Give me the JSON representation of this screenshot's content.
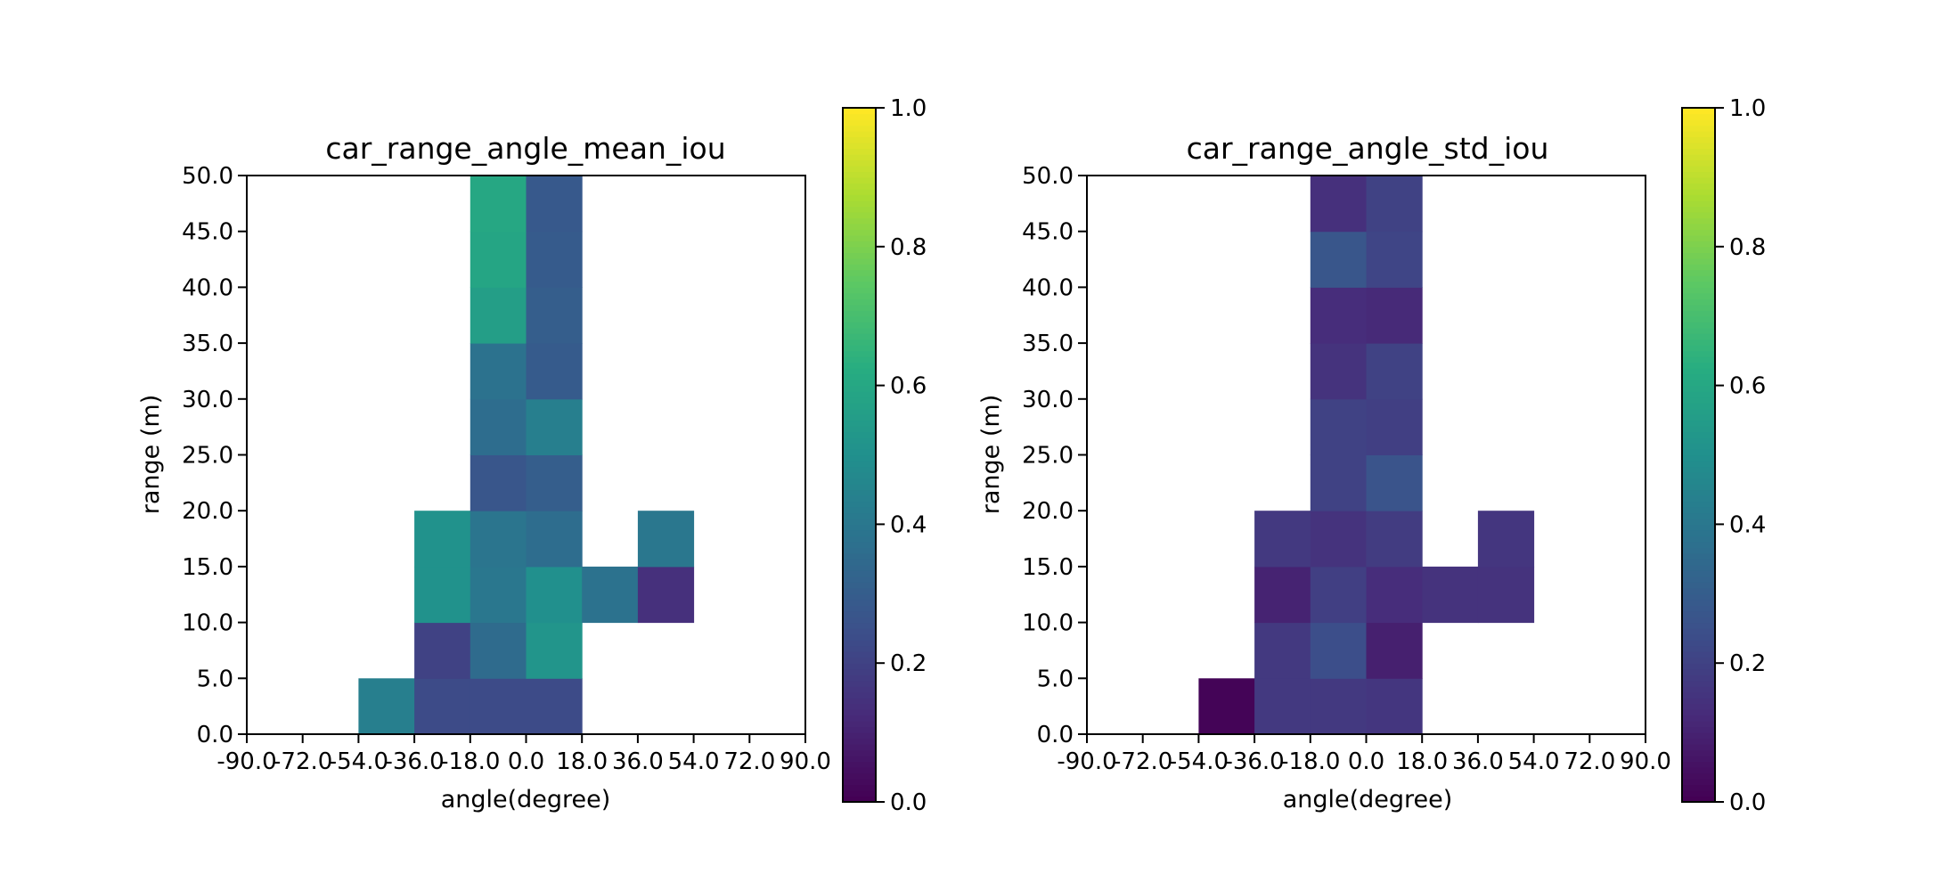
{
  "chart_data": [
    {
      "type": "heatmap",
      "title": "car_range_angle_mean_iou",
      "xlabel": "angle(degree)",
      "ylabel": "range (m)",
      "x_ticks": [
        "-90.0",
        "-72.0",
        "-54.0",
        "-36.0",
        "-18.0",
        "0.0",
        "18.0",
        "36.0",
        "54.0",
        "72.0",
        "90.0"
      ],
      "y_ticks": [
        "0.0",
        "5.0",
        "10.0",
        "15.0",
        "20.0",
        "25.0",
        "30.0",
        "35.0",
        "40.0",
        "45.0",
        "50.0"
      ],
      "xlim": [
        -90,
        90
      ],
      "ylim": [
        0,
        50
      ],
      "colormap": "viridis",
      "vmin": 0,
      "vmax": 1,
      "colorbar_ticks": [
        "0.0",
        "0.2",
        "0.4",
        "0.6",
        "0.8",
        "1.0"
      ],
      "cells": [
        {
          "x": [
            -54,
            -36
          ],
          "y": [
            0,
            5
          ],
          "value": 0.43
        },
        {
          "x": [
            -36,
            -18
          ],
          "y": [
            0,
            5
          ],
          "value": 0.23
        },
        {
          "x": [
            -18,
            0
          ],
          "y": [
            0,
            5
          ],
          "value": 0.23
        },
        {
          "x": [
            0,
            18
          ],
          "y": [
            0,
            5
          ],
          "value": 0.23
        },
        {
          "x": [
            -36,
            -18
          ],
          "y": [
            5,
            10
          ],
          "value": 0.2
        },
        {
          "x": [
            -18,
            0
          ],
          "y": [
            5,
            10
          ],
          "value": 0.35
        },
        {
          "x": [
            0,
            18
          ],
          "y": [
            5,
            10
          ],
          "value": 0.52
        },
        {
          "x": [
            -36,
            -18
          ],
          "y": [
            10,
            15
          ],
          "value": 0.51
        },
        {
          "x": [
            -18,
            0
          ],
          "y": [
            10,
            15
          ],
          "value": 0.4
        },
        {
          "x": [
            0,
            18
          ],
          "y": [
            10,
            15
          ],
          "value": 0.5
        },
        {
          "x": [
            18,
            36
          ],
          "y": [
            10,
            15
          ],
          "value": 0.38
        },
        {
          "x": [
            36,
            54
          ],
          "y": [
            10,
            15
          ],
          "value": 0.14
        },
        {
          "x": [
            -36,
            -18
          ],
          "y": [
            15,
            20
          ],
          "value": 0.51
        },
        {
          "x": [
            -18,
            0
          ],
          "y": [
            15,
            20
          ],
          "value": 0.39
        },
        {
          "x": [
            0,
            18
          ],
          "y": [
            15,
            20
          ],
          "value": 0.36
        },
        {
          "x": [
            36,
            54
          ],
          "y": [
            15,
            20
          ],
          "value": 0.4
        },
        {
          "x": [
            -18,
            0
          ],
          "y": [
            20,
            25
          ],
          "value": 0.27
        },
        {
          "x": [
            0,
            18
          ],
          "y": [
            20,
            25
          ],
          "value": 0.3
        },
        {
          "x": [
            -18,
            0
          ],
          "y": [
            25,
            30
          ],
          "value": 0.36
        },
        {
          "x": [
            0,
            18
          ],
          "y": [
            25,
            30
          ],
          "value": 0.43
        },
        {
          "x": [
            -18,
            0
          ],
          "y": [
            30,
            35
          ],
          "value": 0.38
        },
        {
          "x": [
            0,
            18
          ],
          "y": [
            30,
            35
          ],
          "value": 0.29
        },
        {
          "x": [
            -18,
            0
          ],
          "y": [
            35,
            40
          ],
          "value": 0.56
        },
        {
          "x": [
            0,
            18
          ],
          "y": [
            35,
            40
          ],
          "value": 0.3
        },
        {
          "x": [
            -18,
            0
          ],
          "y": [
            40,
            45
          ],
          "value": 0.59
        },
        {
          "x": [
            0,
            18
          ],
          "y": [
            40,
            45
          ],
          "value": 0.29
        },
        {
          "x": [
            -18,
            0
          ],
          "y": [
            45,
            50
          ],
          "value": 0.6
        },
        {
          "x": [
            0,
            18
          ],
          "y": [
            45,
            50
          ],
          "value": 0.28
        }
      ]
    },
    {
      "type": "heatmap",
      "title": "car_range_angle_std_iou",
      "xlabel": "angle(degree)",
      "ylabel": "range (m)",
      "x_ticks": [
        "-90.0",
        "-72.0",
        "-54.0",
        "-36.0",
        "-18.0",
        "0.0",
        "18.0",
        "36.0",
        "54.0",
        "72.0",
        "90.0"
      ],
      "y_ticks": [
        "0.0",
        "5.0",
        "10.0",
        "15.0",
        "20.0",
        "25.0",
        "30.0",
        "35.0",
        "40.0",
        "45.0",
        "50.0"
      ],
      "xlim": [
        -90,
        90
      ],
      "ylim": [
        0,
        50
      ],
      "colormap": "viridis",
      "vmin": 0,
      "vmax": 1,
      "colorbar_ticks": [
        "0.0",
        "0.2",
        "0.4",
        "0.6",
        "0.8",
        "1.0"
      ],
      "cells": [
        {
          "x": [
            -54,
            -36
          ],
          "y": [
            0,
            5
          ],
          "value": 0.01
        },
        {
          "x": [
            -36,
            -18
          ],
          "y": [
            0,
            5
          ],
          "value": 0.17
        },
        {
          "x": [
            -18,
            0
          ],
          "y": [
            0,
            5
          ],
          "value": 0.17
        },
        {
          "x": [
            0,
            18
          ],
          "y": [
            0,
            5
          ],
          "value": 0.16
        },
        {
          "x": [
            -36,
            -18
          ],
          "y": [
            5,
            10
          ],
          "value": 0.17
        },
        {
          "x": [
            -18,
            0
          ],
          "y": [
            5,
            10
          ],
          "value": 0.24
        },
        {
          "x": [
            0,
            18
          ],
          "y": [
            5,
            10
          ],
          "value": 0.09
        },
        {
          "x": [
            -36,
            -18
          ],
          "y": [
            10,
            15
          ],
          "value": 0.1
        },
        {
          "x": [
            -18,
            0
          ],
          "y": [
            10,
            15
          ],
          "value": 0.19
        },
        {
          "x": [
            0,
            18
          ],
          "y": [
            10,
            15
          ],
          "value": 0.13
        },
        {
          "x": [
            18,
            36
          ],
          "y": [
            10,
            15
          ],
          "value": 0.15
        },
        {
          "x": [
            36,
            54
          ],
          "y": [
            10,
            15
          ],
          "value": 0.15
        },
        {
          "x": [
            -36,
            -18
          ],
          "y": [
            15,
            20
          ],
          "value": 0.17
        },
        {
          "x": [
            -18,
            0
          ],
          "y": [
            15,
            20
          ],
          "value": 0.15
        },
        {
          "x": [
            0,
            18
          ],
          "y": [
            15,
            20
          ],
          "value": 0.18
        },
        {
          "x": [
            36,
            54
          ],
          "y": [
            15,
            20
          ],
          "value": 0.16
        },
        {
          "x": [
            -18,
            0
          ],
          "y": [
            20,
            25
          ],
          "value": 0.2
        },
        {
          "x": [
            0,
            18
          ],
          "y": [
            20,
            25
          ],
          "value": 0.26
        },
        {
          "x": [
            -18,
            0
          ],
          "y": [
            25,
            30
          ],
          "value": 0.2
        },
        {
          "x": [
            0,
            18
          ],
          "y": [
            25,
            30
          ],
          "value": 0.19
        },
        {
          "x": [
            -18,
            0
          ],
          "y": [
            30,
            35
          ],
          "value": 0.15
        },
        {
          "x": [
            0,
            18
          ],
          "y": [
            30,
            35
          ],
          "value": 0.2
        },
        {
          "x": [
            -18,
            0
          ],
          "y": [
            35,
            40
          ],
          "value": 0.13
        },
        {
          "x": [
            0,
            18
          ],
          "y": [
            35,
            40
          ],
          "value": 0.12
        },
        {
          "x": [
            -18,
            0
          ],
          "y": [
            40,
            45
          ],
          "value": 0.27
        },
        {
          "x": [
            0,
            18
          ],
          "y": [
            40,
            45
          ],
          "value": 0.21
        },
        {
          "x": [
            -18,
            0
          ],
          "y": [
            45,
            50
          ],
          "value": 0.14
        },
        {
          "x": [
            0,
            18
          ],
          "y": [
            45,
            50
          ],
          "value": 0.2
        }
      ]
    }
  ]
}
